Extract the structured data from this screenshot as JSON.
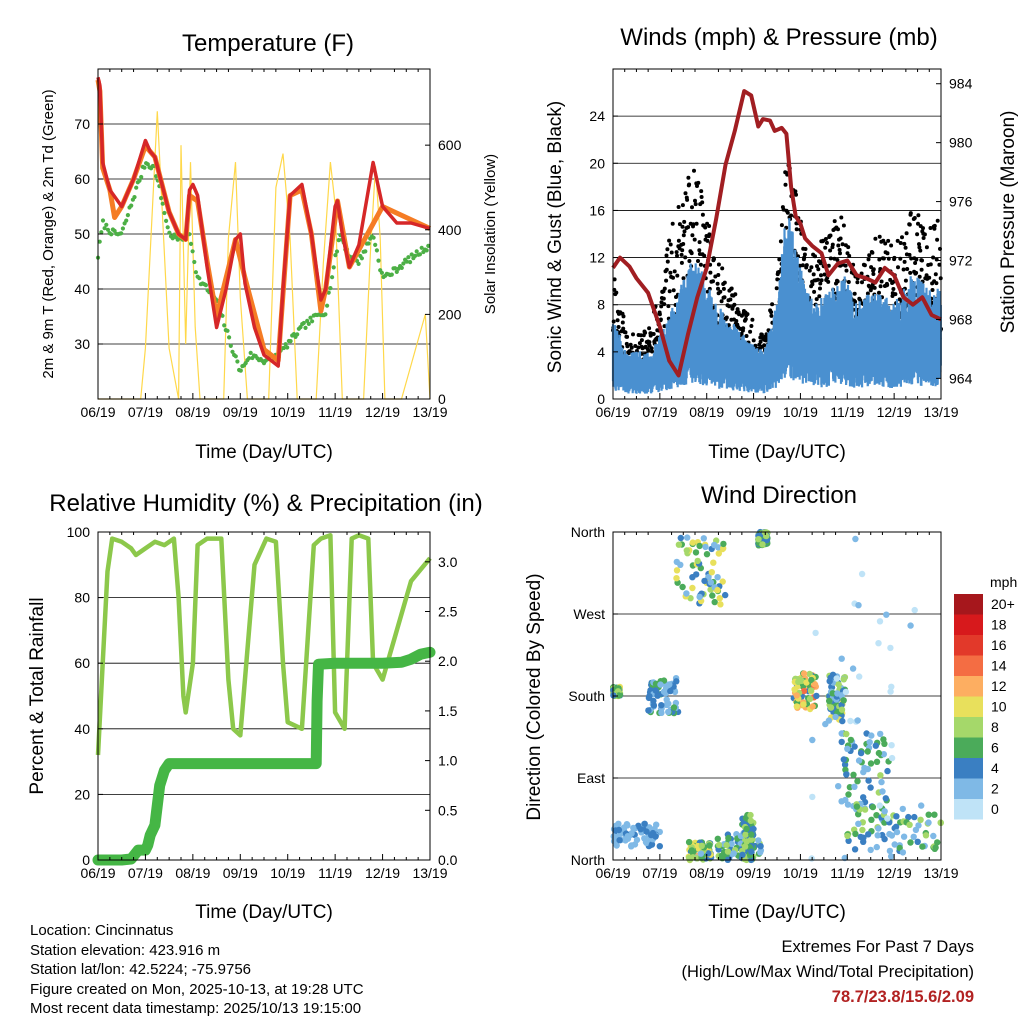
{
  "colors": {
    "temp2m": "#d62728",
    "temp9m": "#f57c24",
    "dewpoint": "#4caf45",
    "solar": "#ffd84a",
    "wind": "#4a90d0",
    "gust": "#000000",
    "pressure": "#a11e22",
    "rh": "#8cc84b",
    "precip": "#45b645",
    "extremes": "#b22222"
  },
  "chart_data": [
    {
      "id": "temperature",
      "type": "line",
      "title": "Temperature (F)",
      "xlabel": "Time (Day/UTC)",
      "ylabel": "2m & 9m T (Red, Orange) & 2m Td (Green)",
      "ylabel_right": "Solar Insolation (Yellow)",
      "xlim": [
        0,
        7
      ],
      "x_ticks": [
        "06/19",
        "07/19",
        "08/19",
        "09/19",
        "10/19",
        "11/19",
        "12/19",
        "13/19"
      ],
      "ylim": [
        20,
        80
      ],
      "y_ticks": [
        30,
        40,
        50,
        60,
        70
      ],
      "ylim_right": [
        0,
        780
      ],
      "y_ticks_right": [
        0,
        200,
        400,
        600
      ],
      "grid": "horizontal",
      "series": [
        {
          "name": "2m T",
          "axis": "left",
          "x": [
            0,
            0.04,
            0.1,
            0.25,
            0.5,
            0.75,
            1.0,
            1.1,
            1.2,
            1.5,
            1.7,
            1.85,
            1.93,
            2.0,
            2.1,
            2.3,
            2.5,
            2.7,
            2.9,
            3.0,
            3.1,
            3.3,
            3.5,
            3.8,
            3.9,
            4.05,
            4.3,
            4.5,
            4.7,
            4.8,
            5.0,
            5.05,
            5.15,
            5.3,
            5.5,
            5.8,
            6.0,
            6.3,
            6.6,
            7.0
          ],
          "y": [
            78.5,
            77,
            63,
            58,
            55,
            60,
            67,
            65,
            64,
            54,
            50,
            49,
            58,
            59,
            57,
            44,
            33,
            40,
            49,
            50,
            41,
            33,
            28,
            26,
            40,
            57,
            59,
            50,
            38,
            40,
            55,
            56,
            50,
            44,
            48,
            63,
            55,
            52,
            52,
            51
          ]
        },
        {
          "name": "9m T",
          "axis": "left",
          "x": [
            0,
            0.04,
            0.1,
            0.25,
            0.35,
            0.5,
            0.75,
            1.0,
            1.2,
            1.5,
            1.7,
            1.85,
            1.93,
            2.1,
            2.3,
            2.5,
            2.9,
            3.1,
            3.5,
            3.8,
            4.05,
            4.3,
            4.5,
            4.7,
            4.8,
            5.05,
            5.3,
            6.0,
            7.0
          ],
          "y": [
            78,
            76,
            62,
            58,
            53,
            55,
            60,
            66,
            64,
            54,
            50,
            49,
            57,
            56,
            45,
            35,
            49,
            42,
            29,
            27,
            57,
            58,
            50,
            36,
            40,
            56,
            44,
            55,
            51
          ]
        },
        {
          "name": "2m Td",
          "axis": "left",
          "x": [
            0,
            0.1,
            0.2,
            0.35,
            0.5,
            0.8,
            1.0,
            1.2,
            1.5,
            1.7,
            1.93,
            2.1,
            2.3,
            2.5,
            2.8,
            3.0,
            3.2,
            3.5,
            3.8,
            4.0,
            4.3,
            4.6,
            4.8,
            5.1,
            5.3,
            5.5,
            5.8,
            6.0,
            6.2,
            6.5,
            7.0
          ],
          "y": [
            46,
            52,
            51,
            50,
            50,
            58,
            63,
            62,
            50,
            49,
            50,
            42,
            40,
            38,
            30,
            25,
            28,
            27,
            28,
            30,
            33,
            35,
            36,
            50,
            46,
            45,
            50,
            42,
            43,
            45,
            48
          ]
        },
        {
          "name": "Solar",
          "axis": "right",
          "x": [
            0,
            0.9,
            1.0,
            1.25,
            1.5,
            1.7,
            1.75,
            1.85,
            1.95,
            2.05,
            2.15,
            2.4,
            2.65,
            2.75,
            2.9,
            3.0,
            3.15,
            3.4,
            3.6,
            3.75,
            3.9,
            4.05,
            4.2,
            4.4,
            4.6,
            4.75,
            4.9,
            5.0,
            5.15,
            5.4,
            5.6,
            5.75,
            5.85,
            5.95,
            6.05,
            6.2,
            6.4,
            6.9,
            7.0
          ],
          "y": [
            0,
            0,
            120,
            680,
            120,
            0,
            600,
            130,
            560,
            170,
            0,
            0,
            0,
            380,
            560,
            240,
            0,
            0,
            0,
            500,
            580,
            380,
            0,
            0,
            0,
            320,
            560,
            460,
            0,
            0,
            0,
            360,
            550,
            380,
            0,
            0,
            0,
            200,
            0
          ]
        }
      ]
    },
    {
      "id": "winds",
      "type": "scatter",
      "title": "Winds (mph) & Pressure (mb)",
      "xlabel": "Time (Day/UTC)",
      "ylabel": "Sonic Wind & Gust (Blue, Black)",
      "ylabel_right": "Station Pressure (Maroon)",
      "xlim": [
        0,
        7
      ],
      "x_ticks": [
        "06/19",
        "07/19",
        "08/19",
        "09/19",
        "10/19",
        "11/19",
        "12/19",
        "13/19"
      ],
      "ylim": [
        0,
        28
      ],
      "y_ticks": [
        0,
        4,
        8,
        12,
        16,
        20,
        24
      ],
      "ylim_right": [
        962.6,
        985
      ],
      "y_ticks_right": [
        964,
        968,
        972,
        976,
        980,
        984
      ],
      "grid": "horizontal",
      "wind_envelope": {
        "x": [
          0,
          0.3,
          0.6,
          0.8,
          1.0,
          1.3,
          1.7,
          1.9,
          2.2,
          2.5,
          2.8,
          3.2,
          3.5,
          3.7,
          3.9,
          4.1,
          4.3,
          4.6,
          4.9,
          5.2,
          5.6,
          6.0,
          6.4,
          6.7,
          7.0
        ],
        "y": [
          5,
          3,
          3,
          3,
          4,
          6,
          9,
          8,
          6,
          5,
          4,
          3,
          6,
          12,
          10,
          7,
          6,
          7,
          8,
          6,
          7,
          6,
          8,
          7,
          7
        ]
      },
      "gust_envelope": {
        "x": [
          0,
          0.3,
          0.6,
          0.8,
          1.0,
          1.3,
          1.7,
          1.9,
          2.2,
          2.5,
          2.8,
          3.2,
          3.5,
          3.7,
          3.9,
          4.1,
          4.3,
          4.6,
          4.9,
          5.2,
          5.6,
          6.0,
          6.4,
          6.7,
          7.0
        ],
        "y": [
          11,
          5,
          5,
          6,
          9,
          14,
          18,
          16,
          11,
          9,
          7,
          5,
          9,
          19,
          16,
          12,
          11,
          14,
          14,
          10,
          13,
          12,
          15,
          13,
          14
        ]
      },
      "series": [
        {
          "name": "Station Pressure",
          "axis": "right",
          "x": [
            0,
            0.15,
            0.35,
            0.5,
            0.75,
            1.0,
            1.2,
            1.4,
            1.6,
            1.8,
            2.0,
            2.2,
            2.4,
            2.6,
            2.8,
            2.95,
            3.1,
            3.2,
            3.35,
            3.45,
            3.6,
            3.7,
            3.8,
            3.9,
            4.0,
            4.1,
            4.25,
            4.45,
            4.6,
            4.8,
            5.0,
            5.2,
            5.4,
            5.6,
            5.8,
            6.0,
            6.2,
            6.4,
            6.6,
            6.8,
            7.0
          ],
          "y": [
            971.5,
            972.2,
            971.6,
            970.8,
            969.8,
            967.5,
            965.2,
            964.2,
            967,
            969.5,
            971.5,
            974.8,
            978.5,
            980.8,
            983.5,
            983.2,
            981.1,
            981.6,
            981.5,
            980.8,
            981.0,
            980.6,
            977.0,
            975.0,
            974.5,
            973.5,
            973.0,
            972.5,
            971.0,
            971.8,
            972.0,
            971.0,
            970.8,
            970.5,
            971.5,
            971.0,
            969.5,
            969.0,
            969.5,
            968.3,
            968.0
          ]
        }
      ]
    },
    {
      "id": "rh_precip",
      "type": "line",
      "title": "Relative Humidity (%) & Precipitation (in)",
      "xlabel": "Time (Day/UTC)",
      "ylabel": "Percent & Total Rainfall",
      "xlim": [
        0,
        7
      ],
      "x_ticks": [
        "06/19",
        "07/19",
        "08/19",
        "09/19",
        "10/19",
        "11/19",
        "12/19",
        "13/19"
      ],
      "ylim": [
        0,
        100
      ],
      "y_ticks": [
        0,
        20,
        40,
        60,
        80,
        100
      ],
      "ylim_right": [
        0,
        3.3
      ],
      "y_ticks_right": [
        "0.0",
        "0.5",
        "1.0",
        "1.5",
        "2.0",
        "2.5",
        "3.0"
      ],
      "grid": "horizontal",
      "series": [
        {
          "name": "Relative Humidity",
          "axis": "left",
          "x": [
            0,
            0.1,
            0.2,
            0.3,
            0.5,
            0.7,
            0.8,
            1.0,
            1.2,
            1.4,
            1.6,
            1.7,
            1.8,
            1.85,
            2.0,
            2.1,
            2.3,
            2.6,
            2.75,
            2.85,
            3.0,
            3.3,
            3.55,
            3.75,
            3.9,
            4.0,
            4.3,
            4.55,
            4.7,
            4.9,
            5.0,
            5.2,
            5.35,
            5.5,
            5.7,
            5.8,
            6.0,
            6.3,
            6.6,
            7.0
          ],
          "y": [
            32,
            60,
            88,
            98,
            97,
            95,
            93,
            95,
            97,
            96,
            98,
            80,
            50,
            45,
            60,
            96,
            98,
            98,
            55,
            40,
            38,
            90,
            98,
            97,
            60,
            42,
            40,
            96,
            98,
            99,
            45,
            40,
            98,
            99,
            98,
            60,
            55,
            70,
            85,
            92
          ]
        },
        {
          "name": "Total Rainfall",
          "axis": "right",
          "x": [
            0,
            0.5,
            0.7,
            0.85,
            1.0,
            1.05,
            1.1,
            1.2,
            1.3,
            1.4,
            1.5,
            2.0,
            3.0,
            4.0,
            4.6,
            4.62,
            4.65,
            5.0,
            6.0,
            6.4,
            6.6,
            6.8,
            7.0
          ],
          "y": [
            0,
            0,
            0.01,
            0.1,
            0.1,
            0.15,
            0.25,
            0.35,
            0.75,
            0.9,
            0.97,
            0.97,
            0.97,
            0.97,
            0.97,
            1.6,
            1.97,
            1.98,
            1.98,
            1.99,
            2.02,
            2.07,
            2.09
          ]
        }
      ]
    },
    {
      "id": "wind_direction",
      "type": "scatter",
      "title": "Wind Direction",
      "xlabel": "Time (Day/UTC)",
      "ylabel": "Direction (Colored By Speed)",
      "xlim": [
        0,
        7
      ],
      "x_ticks": [
        "06/19",
        "07/19",
        "08/19",
        "09/19",
        "10/19",
        "11/19",
        "12/19",
        "13/19"
      ],
      "ylim": [
        0,
        360
      ],
      "y_ticks": [
        "North",
        "East",
        "South",
        "West",
        "North"
      ],
      "grid": "horizontal",
      "legend_title": "mph",
      "legend": {
        "labels": [
          "20+",
          "18",
          "16",
          "14",
          "12",
          "10",
          "8",
          "6",
          "4",
          "2",
          "0"
        ],
        "colors": [
          "#a6171c",
          "#d7191c",
          "#e2392a",
          "#f46d43",
          "#fdae61",
          "#e8e05c",
          "#a5d86a",
          "#4bab5a",
          "#3a7fc2",
          "#7fb9e6",
          "#bfe3f7"
        ]
      },
      "clusters": [
        {
          "x": [
            0.0,
            0.15
          ],
          "dir": [
            180,
            190
          ],
          "speed": [
            4,
            10
          ]
        },
        {
          "x": [
            0.75,
            1.4
          ],
          "dir": [
            160,
            200
          ],
          "speed": [
            1,
            6
          ]
        },
        {
          "x": [
            0.0,
            1.0
          ],
          "dir": [
            15,
            40
          ],
          "speed": [
            1,
            4
          ]
        },
        {
          "x": [
            1.35,
            2.4
          ],
          "dir": [
            280,
            355
          ],
          "speed": [
            2,
            11
          ]
        },
        {
          "x": [
            1.6,
            2.1
          ],
          "dir": [
            0,
            20
          ],
          "speed": [
            2,
            12
          ]
        },
        {
          "x": [
            2.2,
            3.2
          ],
          "dir": [
            0,
            30
          ],
          "speed": [
            1,
            8
          ]
        },
        {
          "x": [
            2.75,
            3.0
          ],
          "dir": [
            0,
            50
          ],
          "speed": [
            3,
            9
          ]
        },
        {
          "x": [
            3.1,
            3.3
          ],
          "dir": [
            345,
            360
          ],
          "speed": [
            3,
            8
          ]
        },
        {
          "x": [
            3.85,
            4.35
          ],
          "dir": [
            165,
            205
          ],
          "speed": [
            4,
            14
          ]
        },
        {
          "x": [
            4.6,
            4.95
          ],
          "dir": [
            150,
            205
          ],
          "speed": [
            2,
            10
          ]
        },
        {
          "x": [
            4.85,
            5.9
          ],
          "dir": [
            40,
            140
          ],
          "speed": [
            1,
            8
          ]
        },
        {
          "x": [
            5.0,
            7.0
          ],
          "dir": [
            10,
            60
          ],
          "speed": [
            1,
            9
          ]
        },
        {
          "x": [
            4.0,
            7.0
          ],
          "dir": [
            0,
            360
          ],
          "speed": [
            0,
            2
          ]
        }
      ]
    }
  ],
  "info": {
    "location": "Location: Cincinnatus",
    "elevation": "Station elevation: 423.916 m",
    "latlon": "Station lat/lon: 42.5224; -75.9756",
    "created": "Figure created on Mon, 2025-10-13, at 19:28 UTC",
    "recent": "Most recent data timestamp: 2025/10/13 19:15:00"
  },
  "extremes": {
    "title": "Extremes For Past 7 Days",
    "subtitle": "(High/Low/Max Wind/Total Precipitation)",
    "values": "78.7/23.8/15.6/2.09"
  }
}
